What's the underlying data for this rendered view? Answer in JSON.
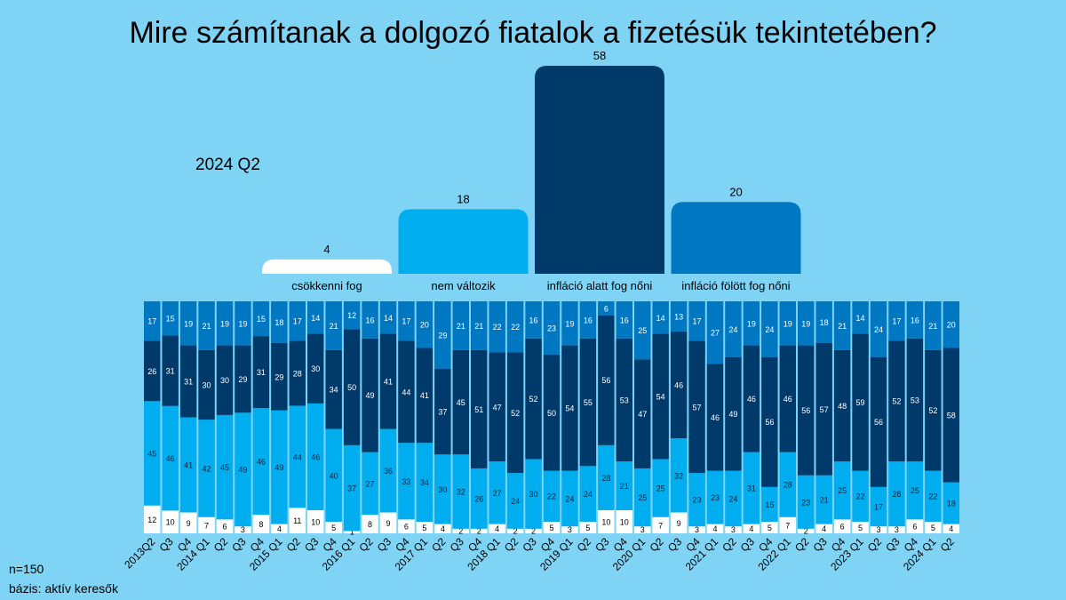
{
  "title": "Mire számítanak a dolgozó fiatalok a fizetésük tekintetében?",
  "period_label": "2024 Q2",
  "footer": {
    "n": "n=150",
    "base": "bázis: aktív keresők"
  },
  "colors": {
    "background": "#7fd3f5",
    "decrease": "#ffffff",
    "no_change": "#00adef",
    "below_inflation": "#003a6b",
    "above_inflation": "#0078c1"
  },
  "chart_data": [
    {
      "type": "bar",
      "categories": [
        "csökkenni fog",
        "nem változik",
        "infláció alatt fog nőni",
        "infláció fölött fog nőni"
      ],
      "values": [
        4,
        18,
        58,
        20
      ]
    },
    {
      "type": "bar",
      "stacked": true,
      "normalized": true,
      "categories": [
        "2013Q2",
        "Q3",
        "Q4",
        "2014 Q1",
        "Q2",
        "Q3",
        "Q4",
        "2015 Q1",
        "Q2",
        "Q3",
        "Q4",
        "2016 Q1",
        "Q2",
        "Q3",
        "Q4",
        "2017 Q1",
        "Q2",
        "Q3",
        "Q4",
        "2018 Q1",
        "Q2",
        "Q3",
        "Q4",
        "2019 Q1",
        "Q2",
        "Q3",
        "Q4",
        "2020 Q1",
        "Q2",
        "Q3",
        "Q4",
        "2021 Q1",
        "Q2",
        "Q3",
        "Q4",
        "2022 Q1",
        "Q2",
        "Q3",
        "Q4",
        "2023 Q1",
        "Q2",
        "Q3",
        "Q4",
        "2024 Q1",
        "Q2"
      ],
      "series": [
        {
          "name": "csökkenni fog",
          "values": [
            12,
            10,
            9,
            7,
            6,
            3,
            8,
            4,
            11,
            10,
            5,
            1,
            8,
            9,
            6,
            5,
            4,
            2,
            2,
            4,
            2,
            2,
            5,
            3,
            5,
            10,
            10,
            3,
            7,
            9,
            3,
            4,
            3,
            4,
            5,
            7,
            2,
            4,
            6,
            5,
            3,
            3,
            6,
            5,
            4
          ]
        },
        {
          "name": "nem változik",
          "values": [
            45,
            46,
            41,
            42,
            45,
            49,
            46,
            49,
            44,
            46,
            40,
            37,
            27,
            36,
            33,
            34,
            30,
            32,
            26,
            27,
            24,
            30,
            22,
            24,
            24,
            28,
            21,
            25,
            25,
            32,
            23,
            23,
            24,
            31,
            15,
            28,
            23,
            21,
            25,
            22,
            17,
            28,
            25,
            22,
            18
          ]
        },
        {
          "name": "infláció alatt fog nőni",
          "values": [
            26,
            31,
            31,
            30,
            30,
            29,
            31,
            29,
            28,
            30,
            34,
            50,
            49,
            41,
            44,
            41,
            37,
            45,
            51,
            47,
            52,
            52,
            50,
            54,
            55,
            56,
            53,
            47,
            54,
            46,
            57,
            46,
            49,
            46,
            56,
            46,
            56,
            57,
            48,
            59,
            56,
            52,
            53,
            52,
            58
          ]
        },
        {
          "name": "infláció fölött fog nőni",
          "values": [
            17,
            15,
            19,
            21,
            19,
            19,
            15,
            18,
            17,
            14,
            21,
            12,
            16,
            14,
            17,
            20,
            29,
            21,
            21,
            22,
            22,
            16,
            23,
            19,
            16,
            6,
            16,
            25,
            14,
            13,
            17,
            27,
            24,
            19,
            24,
            19,
            19,
            18,
            21,
            14,
            24,
            17,
            16,
            21,
            20
          ]
        }
      ]
    }
  ]
}
